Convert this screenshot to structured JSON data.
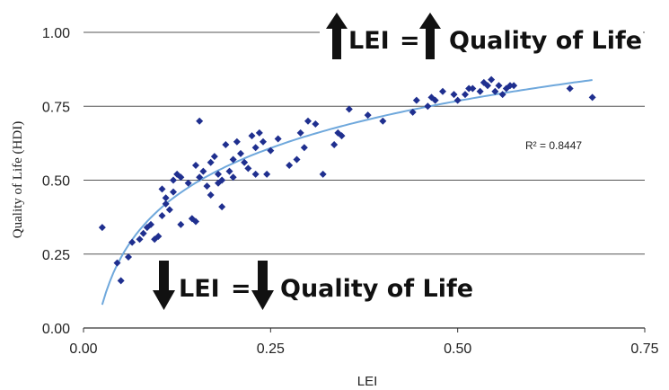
{
  "chart_data": {
    "type": "scatter",
    "title": "",
    "xlabel": "LEI",
    "ylabel": "Quality of Life (HDI)",
    "xlim": [
      0,
      0.75
    ],
    "ylim": [
      0,
      1
    ],
    "x_ticks": [
      "0.00",
      "0.25",
      "0.50",
      "0.75"
    ],
    "y_ticks": [
      "0.00",
      "0.25",
      "0.50",
      "0.75",
      "1.00"
    ],
    "grid": "horizontal",
    "marker_color": "#1f2f8f",
    "trend_color": "#6fa8dc",
    "trendline": {
      "type": "logarithmic",
      "r_squared_label": "R² = 0.8447"
    },
    "annotations": {
      "top": {
        "left_word": "LEI",
        "right_phrase": "Quality of Life",
        "arrow": "up"
      },
      "bottom": {
        "left_word": "LEI",
        "right_phrase": "Quality of Life",
        "arrow": "down"
      }
    },
    "series": [
      {
        "points": [
          [
            0.025,
            0.34
          ],
          [
            0.045,
            0.22
          ],
          [
            0.05,
            0.16
          ],
          [
            0.06,
            0.24
          ],
          [
            0.065,
            0.29
          ],
          [
            0.075,
            0.3
          ],
          [
            0.08,
            0.32
          ],
          [
            0.085,
            0.34
          ],
          [
            0.09,
            0.35
          ],
          [
            0.095,
            0.3
          ],
          [
            0.1,
            0.31
          ],
          [
            0.105,
            0.38
          ],
          [
            0.105,
            0.47
          ],
          [
            0.11,
            0.42
          ],
          [
            0.11,
            0.44
          ],
          [
            0.115,
            0.4
          ],
          [
            0.12,
            0.46
          ],
          [
            0.12,
            0.5
          ],
          [
            0.125,
            0.52
          ],
          [
            0.13,
            0.51
          ],
          [
            0.13,
            0.35
          ],
          [
            0.14,
            0.49
          ],
          [
            0.145,
            0.37
          ],
          [
            0.15,
            0.36
          ],
          [
            0.15,
            0.55
          ],
          [
            0.155,
            0.51
          ],
          [
            0.155,
            0.7
          ],
          [
            0.16,
            0.53
          ],
          [
            0.165,
            0.48
          ],
          [
            0.17,
            0.56
          ],
          [
            0.17,
            0.45
          ],
          [
            0.175,
            0.58
          ],
          [
            0.18,
            0.49
          ],
          [
            0.18,
            0.52
          ],
          [
            0.185,
            0.5
          ],
          [
            0.185,
            0.41
          ],
          [
            0.19,
            0.62
          ],
          [
            0.195,
            0.53
          ],
          [
            0.2,
            0.51
          ],
          [
            0.2,
            0.57
          ],
          [
            0.205,
            0.63
          ],
          [
            0.21,
            0.59
          ],
          [
            0.215,
            0.56
          ],
          [
            0.22,
            0.54
          ],
          [
            0.225,
            0.65
          ],
          [
            0.23,
            0.52
          ],
          [
            0.23,
            0.61
          ],
          [
            0.235,
            0.66
          ],
          [
            0.24,
            0.63
          ],
          [
            0.245,
            0.52
          ],
          [
            0.25,
            0.6
          ],
          [
            0.26,
            0.64
          ],
          [
            0.275,
            0.55
          ],
          [
            0.285,
            0.57
          ],
          [
            0.29,
            0.66
          ],
          [
            0.295,
            0.61
          ],
          [
            0.3,
            0.7
          ],
          [
            0.31,
            0.69
          ],
          [
            0.32,
            0.52
          ],
          [
            0.335,
            0.62
          ],
          [
            0.34,
            0.66
          ],
          [
            0.345,
            0.65
          ],
          [
            0.355,
            0.74
          ],
          [
            0.38,
            0.72
          ],
          [
            0.4,
            0.7
          ],
          [
            0.44,
            0.73
          ],
          [
            0.445,
            0.77
          ],
          [
            0.46,
            0.75
          ],
          [
            0.465,
            0.78
          ],
          [
            0.47,
            0.77
          ],
          [
            0.48,
            0.8
          ],
          [
            0.495,
            0.79
          ],
          [
            0.5,
            0.77
          ],
          [
            0.51,
            0.79
          ],
          [
            0.515,
            0.81
          ],
          [
            0.52,
            0.81
          ],
          [
            0.53,
            0.8
          ],
          [
            0.535,
            0.83
          ],
          [
            0.54,
            0.82
          ],
          [
            0.545,
            0.84
          ],
          [
            0.55,
            0.8
          ],
          [
            0.555,
            0.82
          ],
          [
            0.56,
            0.79
          ],
          [
            0.565,
            0.81
          ],
          [
            0.57,
            0.82
          ],
          [
            0.575,
            0.82
          ],
          [
            0.65,
            0.81
          ],
          [
            0.68,
            0.78
          ]
        ]
      }
    ]
  }
}
